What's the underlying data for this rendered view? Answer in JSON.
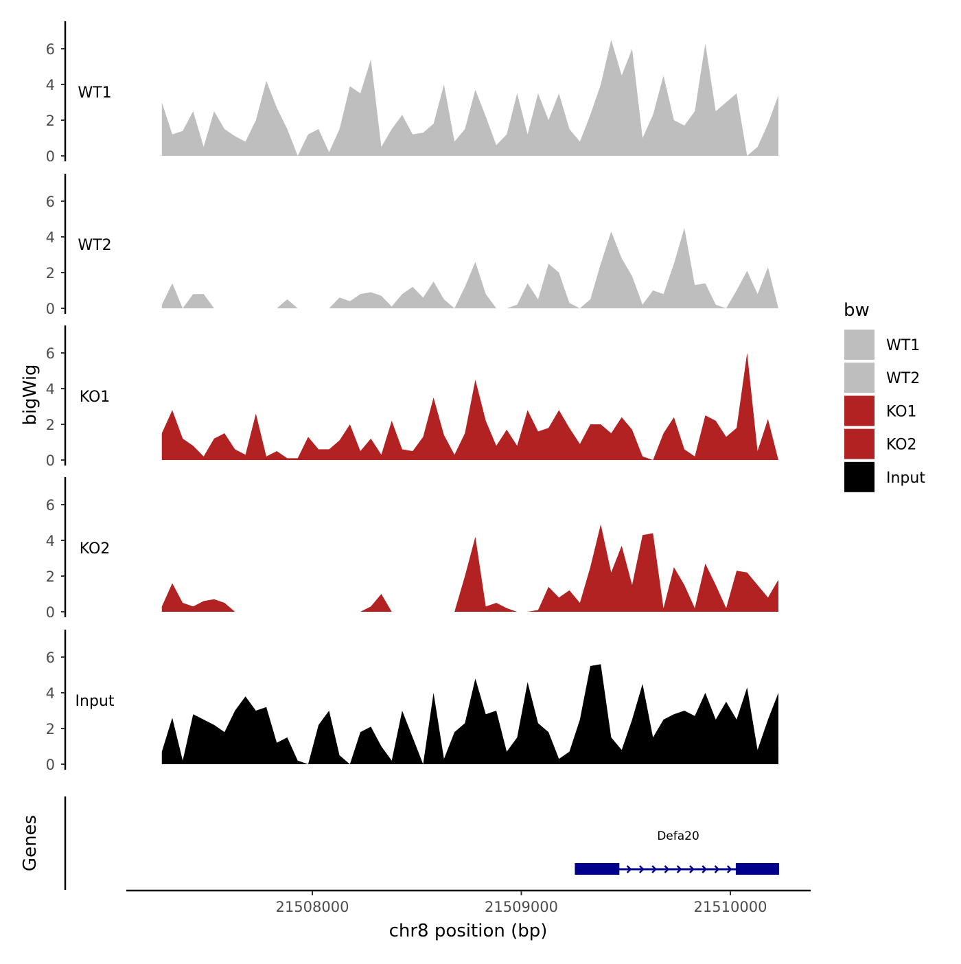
{
  "chart_data": {
    "type": "area",
    "xlabel": "chr8 position (bp)",
    "ylabel": "bigWig",
    "genes_label": "Genes",
    "xlim": [
      21507100,
      21510380
    ],
    "ylim": [
      0,
      7.5
    ],
    "x_ticks": [
      21508000,
      21509000,
      21510000
    ],
    "x_tick_labels": [
      "21508000",
      "21509000",
      "21510000"
    ],
    "y_ticks": [
      0,
      2,
      4,
      6
    ],
    "y_tick_labels": [
      "0",
      "2",
      "4",
      "6"
    ],
    "x_start": 21507280,
    "x_step": 50,
    "legend": {
      "title": "bw",
      "position": "right",
      "entries": [
        {
          "label": "WT1",
          "color": "#BEBEBE"
        },
        {
          "label": "WT2",
          "color": "#BEBEBE"
        },
        {
          "label": "KO1",
          "color": "#B22222"
        },
        {
          "label": "KO2",
          "color": "#B22222"
        },
        {
          "label": "Input",
          "color": "#000000"
        }
      ]
    },
    "series": [
      {
        "name": "WT1",
        "color": "#BEBEBE",
        "values": [
          3,
          1.2,
          1.4,
          2.5,
          0.5,
          2.5,
          1.5,
          1.1,
          0.8,
          2.0,
          4.2,
          2.7,
          1.5,
          0,
          1.2,
          1.5,
          0.2,
          1.5,
          3.9,
          3.5,
          5.4,
          0.5,
          1.5,
          2.3,
          1.2,
          1.3,
          1.8,
          4,
          0.8,
          1.5,
          3.7,
          2.2,
          0.6,
          1.2,
          3.5,
          1.2,
          3.5,
          2,
          3.5,
          1.5,
          0.8,
          2.3,
          4,
          6.5,
          4.5,
          6,
          1,
          2.3,
          4.5,
          2,
          1.7,
          2.5,
          6.3,
          2.5,
          3,
          3.5,
          0,
          0.5,
          1.8,
          3.4
        ]
      },
      {
        "name": "WT2",
        "color": "#BEBEBE",
        "values": [
          0.2,
          1.4,
          0,
          0.8,
          0.8,
          0,
          0,
          0,
          0,
          0,
          0,
          0,
          0.5,
          0,
          0,
          0,
          0,
          0.6,
          0.4,
          0.8,
          0.9,
          0.7,
          0.1,
          0.8,
          1.2,
          0.6,
          1.5,
          0.5,
          0,
          1.2,
          2.6,
          0.8,
          0,
          0,
          0.2,
          1.4,
          0.5,
          2.5,
          2,
          0.3,
          0,
          0.5,
          2.5,
          4.3,
          2.8,
          1.8,
          0.2,
          1,
          0.8,
          2.5,
          4.5,
          1.3,
          1.4,
          0.2,
          0,
          1,
          2.1,
          0.8,
          2.3,
          0
        ]
      },
      {
        "name": "KO1",
        "color": "#B22222",
        "values": [
          1.5,
          2.8,
          1.2,
          0.8,
          0.2,
          1.2,
          1.5,
          0.6,
          0.3,
          2.6,
          0.2,
          0.5,
          0.1,
          0.1,
          1.3,
          0.6,
          0.6,
          1.1,
          2,
          0.5,
          1.2,
          0.3,
          2.2,
          0.6,
          0.5,
          1.3,
          3.5,
          1.4,
          0.3,
          1.5,
          4.5,
          2.2,
          0.8,
          1.7,
          0.8,
          2.8,
          1.6,
          1.8,
          2.8,
          1.8,
          0.9,
          2,
          2,
          1.5,
          2.4,
          1.7,
          0.2,
          0,
          1.5,
          2.4,
          0.6,
          0.2,
          2.5,
          2.2,
          1.3,
          1.8,
          6,
          0.5,
          2.3,
          0
        ]
      },
      {
        "name": "KO2",
        "color": "#B22222",
        "values": [
          0.3,
          1.6,
          0.5,
          0.3,
          0.6,
          0.7,
          0.5,
          0,
          0,
          0,
          0,
          0,
          0,
          0,
          0,
          0,
          0,
          0,
          0,
          0,
          0.3,
          1,
          0,
          0,
          0,
          0,
          0,
          0,
          0,
          2,
          4.2,
          0.3,
          0.5,
          0.2,
          0,
          0,
          0.1,
          1.4,
          0.8,
          1.2,
          0.5,
          2.5,
          4.9,
          2.2,
          3.7,
          1.5,
          4.3,
          4.4,
          0.2,
          2.5,
          1.5,
          0.2,
          2.7,
          1.5,
          0.2,
          2.3,
          2.2,
          1.5,
          0.8,
          1.8
        ]
      },
      {
        "name": "Input",
        "color": "#000000",
        "values": [
          0.7,
          2.6,
          0.2,
          2.8,
          2.5,
          2.2,
          1.8,
          3,
          3.8,
          3,
          3.2,
          1.2,
          1.5,
          0.2,
          0,
          2.2,
          3,
          0.5,
          0,
          1.8,
          2.1,
          1,
          0.2,
          3,
          1.5,
          0,
          4,
          0.3,
          1.8,
          2.3,
          4.8,
          2.8,
          3,
          0.7,
          1.5,
          4.6,
          2.3,
          1.8,
          0.3,
          0.7,
          2.5,
          5.5,
          5.6,
          1.5,
          0.8,
          2.5,
          4.5,
          1.5,
          2.5,
          2.8,
          3,
          2.7,
          4,
          2.5,
          3.5,
          2.5,
          4.3,
          0.8,
          2.5,
          4
        ]
      }
    ],
    "gene": {
      "name": "Defa20",
      "color": "#00008B",
      "start": 21509256,
      "end": 21510233,
      "strand": "+",
      "exons": [
        [
          21509256,
          21509469
        ],
        [
          21510026,
          21510233
        ]
      ]
    }
  }
}
